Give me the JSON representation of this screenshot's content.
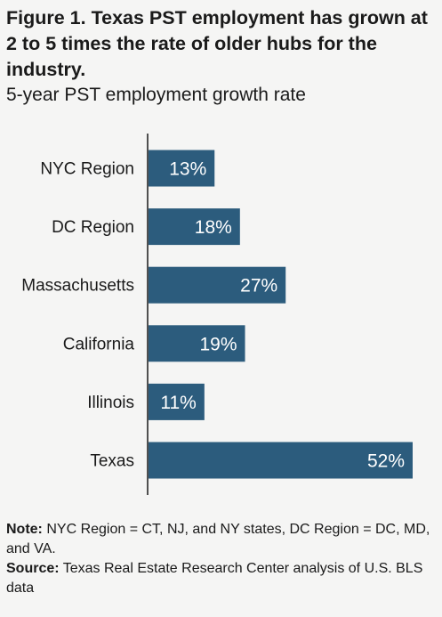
{
  "title": "Figure 1. Texas PST employment has grown at 2 to 5 times the rate of older hubs for the industry.",
  "subtitle": "5-year PST employment growth rate",
  "chart_data": {
    "type": "bar",
    "orientation": "horizontal",
    "categories": [
      "NYC Region",
      "DC Region",
      "Massachusetts",
      "California",
      "Illinois",
      "Texas"
    ],
    "values": [
      13,
      18,
      27,
      19,
      11,
      52
    ],
    "data_labels": [
      "13%",
      "18%",
      "27%",
      "19%",
      "11%",
      "52%"
    ],
    "unit": "%",
    "xlim": [
      0,
      52
    ],
    "bar_color": "#2c5c7d",
    "label_color": "#ffffff",
    "grid": false,
    "legend": "none"
  },
  "notes": {
    "note_label": "Note:",
    "note_text": " NYC Region = CT, NJ, and NY states, DC Region = DC, MD, and VA.",
    "source_label": "Source:",
    "source_text": " Texas Real Estate Research Center analysis of U.S. BLS data"
  }
}
